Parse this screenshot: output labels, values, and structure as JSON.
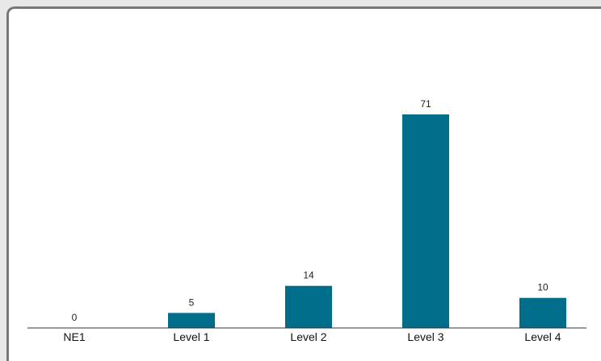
{
  "chart_data": {
    "type": "bar",
    "categories": [
      "NE1",
      "Level 1",
      "Level 2",
      "Level 3",
      "Level 4"
    ],
    "values": [
      0,
      5,
      14,
      71,
      10
    ],
    "title": "",
    "xlabel": "",
    "ylabel": "",
    "ylim": [
      0,
      71
    ],
    "grid": false,
    "legend": "none",
    "bar_color": "#006e8a",
    "axis_color": "#333333"
  }
}
